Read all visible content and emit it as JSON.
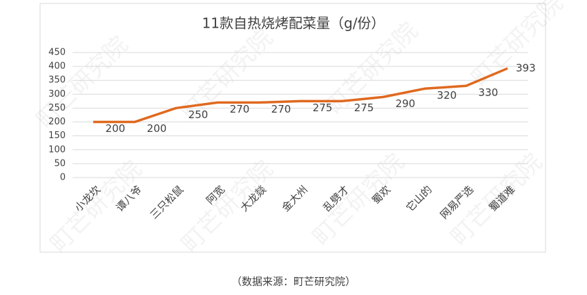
{
  "chart_data": {
    "type": "line",
    "title": "11款自热烧烤配菜量（g/份）",
    "categories": [
      "小龙坎",
      "谭八爷",
      "三只松鼠",
      "阿宽",
      "大龙燚",
      "金大州",
      "乱劈才",
      "蜀欢",
      "它山的",
      "网易严选",
      "蜀道难"
    ],
    "values": [
      200,
      200,
      250,
      270,
      270,
      275,
      275,
      290,
      320,
      330,
      393
    ],
    "color": "#e0691f",
    "ylim": [
      0,
      450
    ],
    "yticks": [
      0,
      50,
      100,
      150,
      200,
      250,
      300,
      350,
      400,
      450
    ],
    "grid": true,
    "source": "（数据来源：町芒研究院）",
    "watermark": "町芒研究院"
  }
}
